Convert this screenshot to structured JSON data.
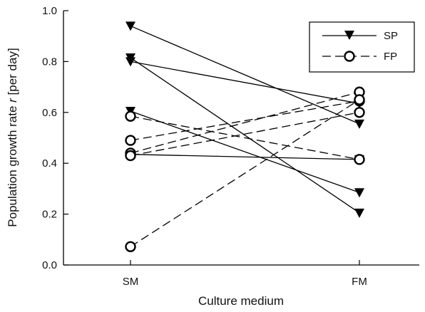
{
  "chart_data": {
    "type": "line",
    "categories": [
      "SM",
      "FM"
    ],
    "xlabel": "Culture medium",
    "ylabel_prefix": "Population growth rate ",
    "ylabel_italic": "r",
    "ylabel_suffix": " [per day]",
    "ylim": [
      0.0,
      1.0
    ],
    "yticks": [
      "0.0",
      "0.2",
      "0.4",
      "0.6",
      "0.8",
      "1.0"
    ],
    "legend": {
      "placement": "top-right",
      "entries": [
        "SP",
        "FP"
      ]
    },
    "series": [
      {
        "name": "SP",
        "marker": "triangle-down-filled",
        "dash": "solid",
        "lines": [
          [
            0.94,
            0.555
          ],
          [
            0.815,
            0.205
          ],
          [
            0.8,
            0.635
          ],
          [
            0.605,
            0.285
          ],
          [
            0.435,
            0.415
          ]
        ]
      },
      {
        "name": "FP",
        "marker": "circle-open",
        "dash": "dashed",
        "lines": [
          [
            0.585,
            0.415
          ],
          [
            0.49,
            0.645
          ],
          [
            0.44,
            0.68
          ],
          [
            0.43,
            0.6
          ],
          [
            0.072,
            0.65
          ]
        ]
      }
    ]
  }
}
